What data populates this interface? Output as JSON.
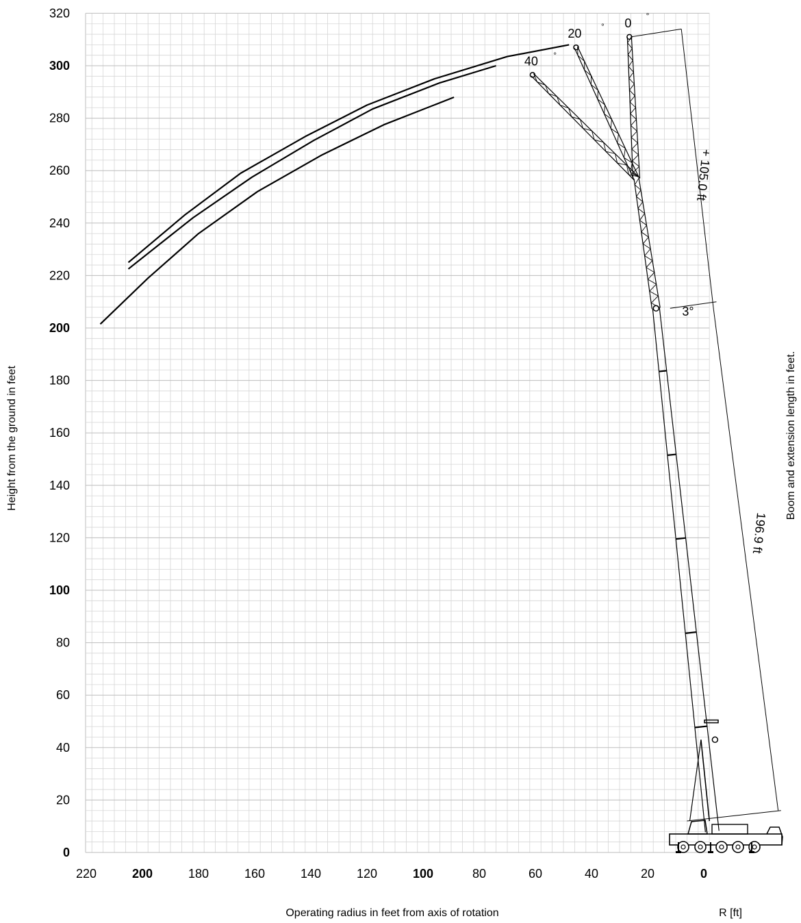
{
  "chart_data": {
    "type": "line",
    "xlabel": "Operating radius in feet from axis of rotation",
    "xunit_label": "R [ft]",
    "ylabel": "Height from the ground in feet",
    "right_label": "Boom and extension length in feet.",
    "xlim": [
      220,
      -22
    ],
    "ylim": [
      0,
      320
    ],
    "x_reversed": true,
    "grid": true,
    "x_ticks": [
      {
        "value": 220,
        "label": "220",
        "bold": false
      },
      {
        "value": 200,
        "label": "200",
        "bold": true
      },
      {
        "value": 180,
        "label": "180",
        "bold": false
      },
      {
        "value": 160,
        "label": "160",
        "bold": false
      },
      {
        "value": 140,
        "label": "140",
        "bold": false
      },
      {
        "value": 120,
        "label": "120",
        "bold": false
      },
      {
        "value": 100,
        "label": "100",
        "bold": true
      },
      {
        "value": 80,
        "label": "80",
        "bold": false
      },
      {
        "value": 60,
        "label": "60",
        "bold": false
      },
      {
        "value": 40,
        "label": "40",
        "bold": false
      },
      {
        "value": 20,
        "label": "20",
        "bold": false
      },
      {
        "value": 0,
        "label": "0",
        "bold": true
      }
    ],
    "y_ticks": [
      {
        "value": 0,
        "label": "0",
        "bold": true
      },
      {
        "value": 20,
        "label": "20",
        "bold": false
      },
      {
        "value": 40,
        "label": "40",
        "bold": false
      },
      {
        "value": 60,
        "label": "60",
        "bold": false
      },
      {
        "value": 80,
        "label": "80",
        "bold": false
      },
      {
        "value": 100,
        "label": "100",
        "bold": true
      },
      {
        "value": 120,
        "label": "120",
        "bold": false
      },
      {
        "value": 140,
        "label": "140",
        "bold": false
      },
      {
        "value": 160,
        "label": "160",
        "bold": false
      },
      {
        "value": 180,
        "label": "180",
        "bold": false
      },
      {
        "value": 200,
        "label": "200",
        "bold": true
      },
      {
        "value": 220,
        "label": "220",
        "bold": false
      },
      {
        "value": 240,
        "label": "240",
        "bold": false
      },
      {
        "value": 260,
        "label": "260",
        "bold": false
      },
      {
        "value": 280,
        "label": "280",
        "bold": false
      },
      {
        "value": 300,
        "label": "300",
        "bold": true
      },
      {
        "value": 320,
        "label": "320",
        "bold": false
      }
    ],
    "series": [
      {
        "values": [
          [
            205,
            225
          ],
          [
            185,
            243
          ],
          [
            165,
            259
          ],
          [
            142,
            273
          ],
          [
            120,
            285
          ],
          [
            96,
            295
          ],
          [
            70,
            303.5
          ],
          [
            48,
            308
          ]
        ]
      },
      {
        "values": [
          [
            205,
            222.5
          ],
          [
            182,
            242
          ],
          [
            161,
            257.5
          ],
          [
            139,
            271.5
          ],
          [
            118,
            283.5
          ],
          [
            94,
            293.5
          ],
          [
            74,
            300
          ]
        ]
      },
      {
        "values": [
          [
            215,
            201.5
          ],
          [
            198,
            219
          ],
          [
            180,
            236
          ],
          [
            159,
            252
          ],
          [
            136,
            266
          ],
          [
            114,
            277.5
          ],
          [
            89,
            288
          ]
        ]
      }
    ],
    "boom": {
      "main": {
        "base": [
          -3,
          8
        ],
        "tip": [
          17,
          207.5
        ],
        "length_label": "196.9 ft"
      },
      "extension": {
        "base": [
          17,
          207.5
        ],
        "length_label": "+ 105.0 ft",
        "angle_label": "3°"
      },
      "offset_positions": [
        {
          "label": "0",
          "tip": [
            26.5,
            311
          ]
        },
        {
          "label": "20",
          "tip": [
            45.5,
            307
          ]
        },
        {
          "label": "40",
          "tip": [
            61,
            296.5
          ]
        }
      ],
      "degree_symbol": "°"
    }
  }
}
